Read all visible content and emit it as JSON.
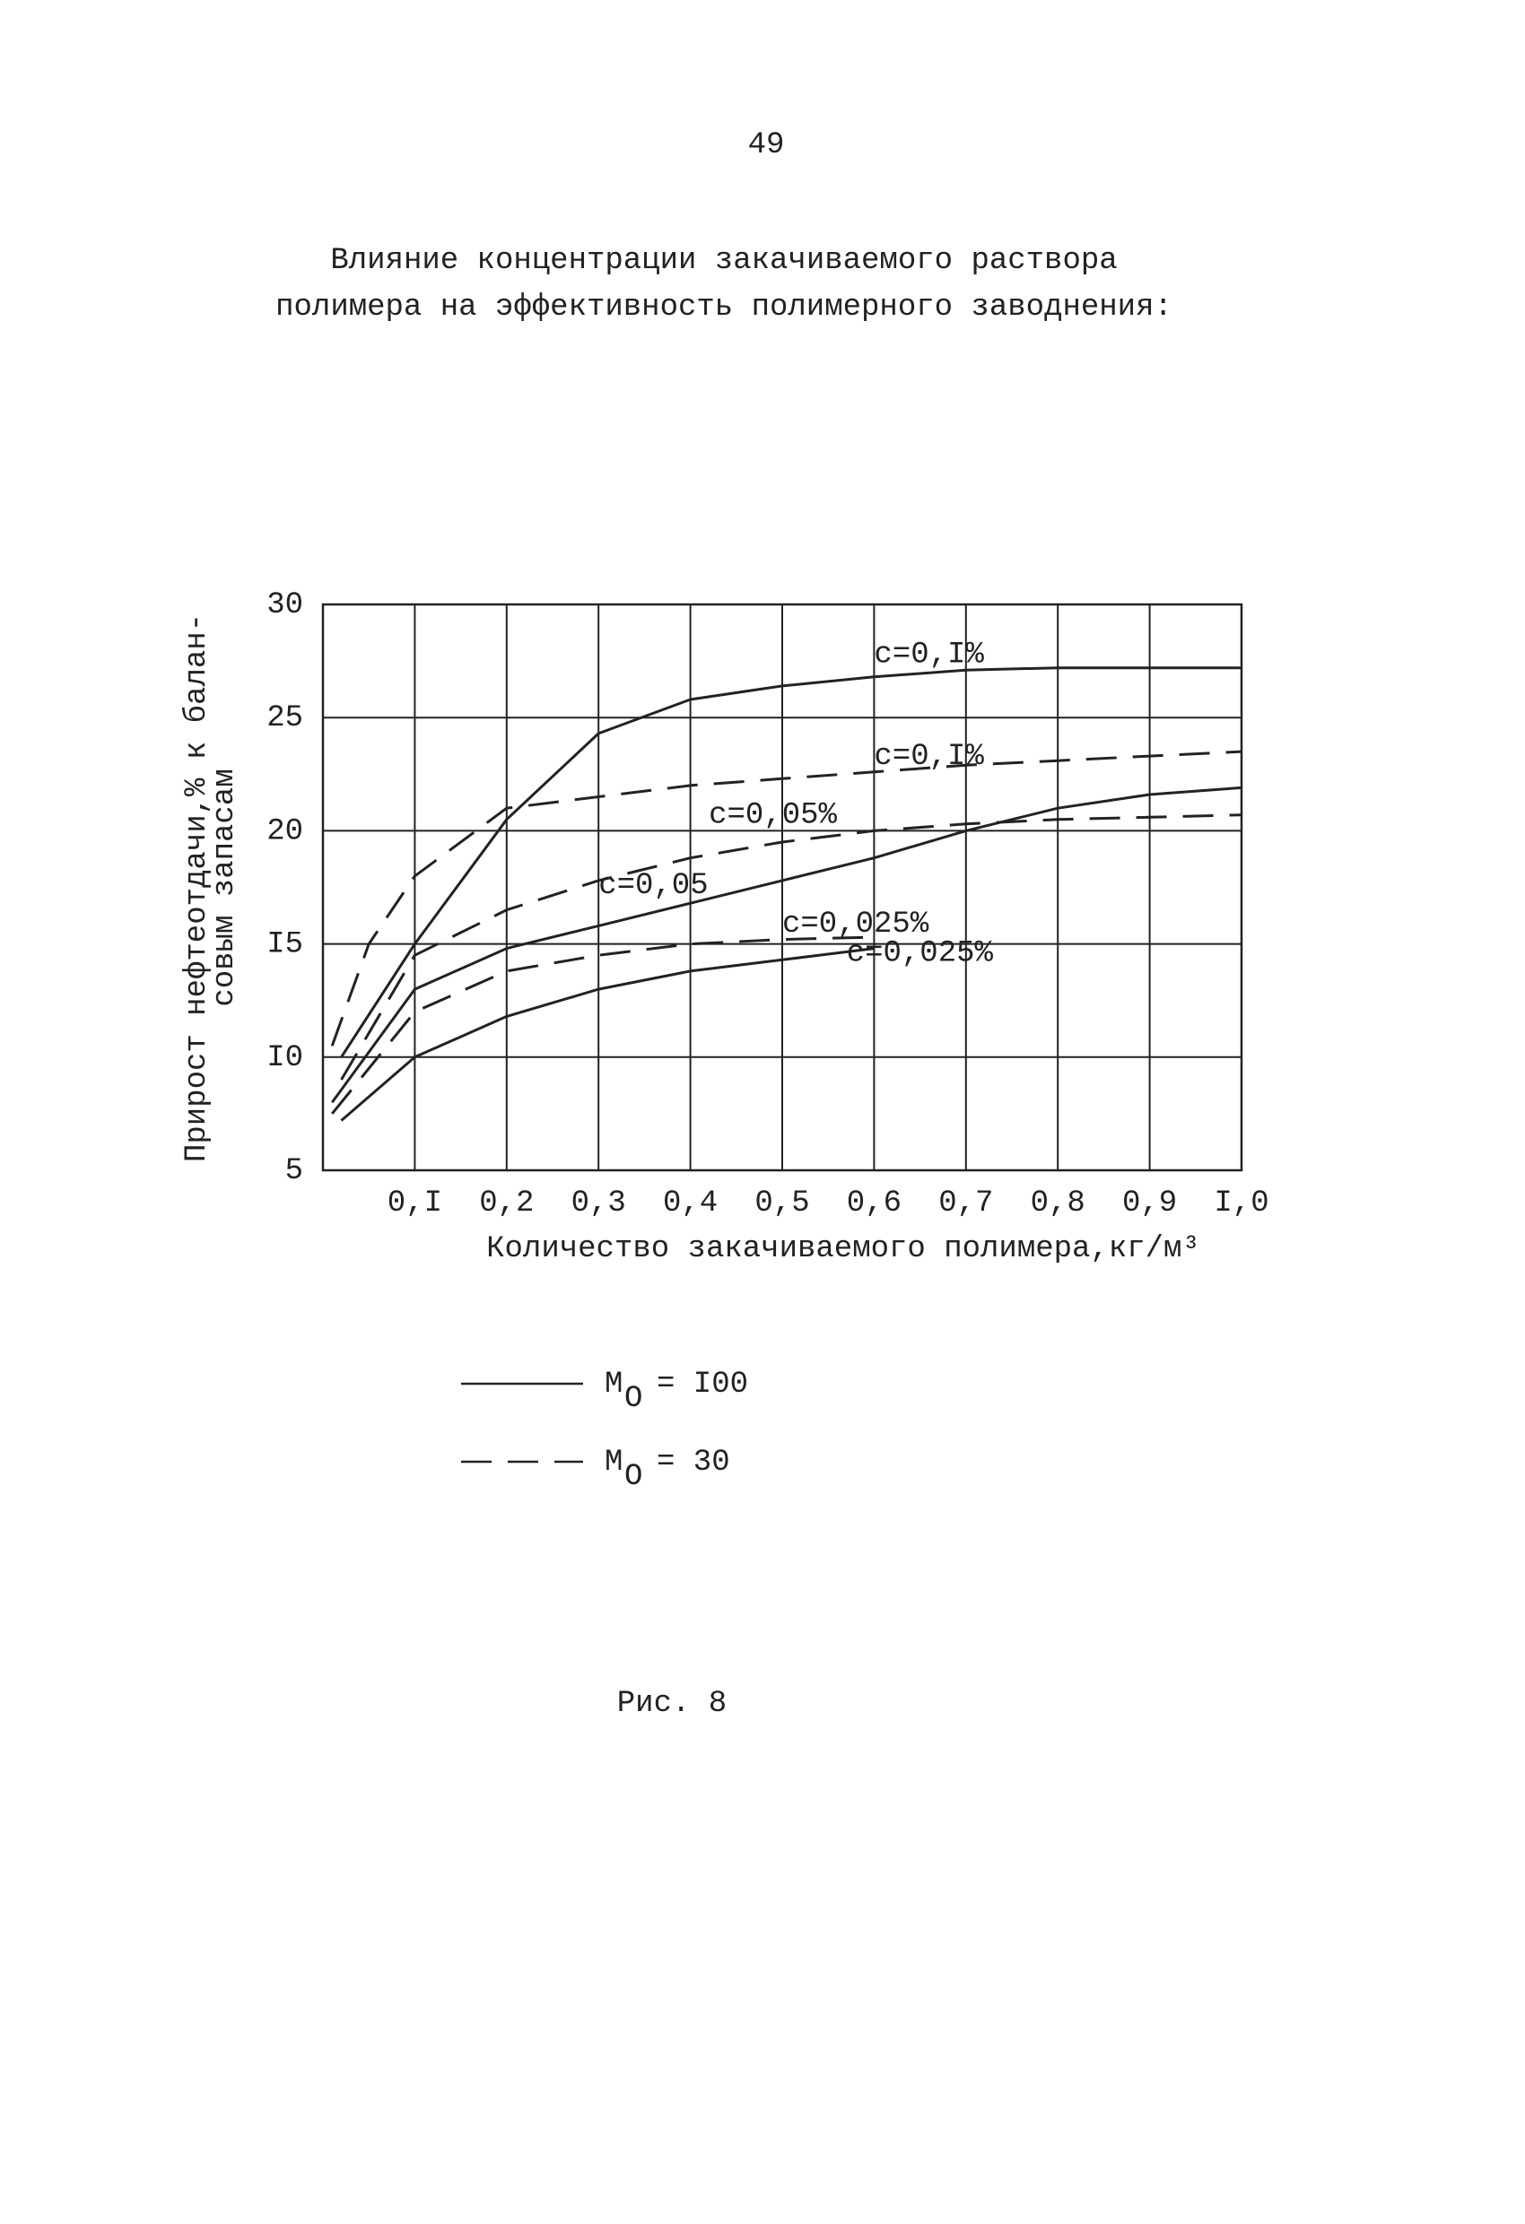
{
  "page_number": "49",
  "caption": "Рис. 8",
  "chart_data": {
    "type": "line",
    "title": [
      "Влияние концентрации закачиваемого раствора",
      "полимера на эффективность полимерного заводнения:"
    ],
    "y_label": [
      "Прирост нефтеотдачи,% к балан-",
      "совым запасам"
    ],
    "x_label": "Количество закачиваемого полимера,кг/м³",
    "xlim": [
      0,
      1.0
    ],
    "ylim": [
      5,
      30
    ],
    "xticks": [
      {
        "value": 0.1,
        "label": "0,I"
      },
      {
        "value": 0.2,
        "label": "0,2"
      },
      {
        "value": 0.3,
        "label": "0,3"
      },
      {
        "value": 0.4,
        "label": "0,4"
      },
      {
        "value": 0.5,
        "label": "0,5"
      },
      {
        "value": 0.6,
        "label": "0,6"
      },
      {
        "value": 0.7,
        "label": "0,7"
      },
      {
        "value": 0.8,
        "label": "0,8"
      },
      {
        "value": 0.9,
        "label": "0,9"
      },
      {
        "value": 1.0,
        "label": "I,0"
      }
    ],
    "yticks": [
      5,
      {
        "value": 10,
        "label": "I0"
      },
      {
        "value": 15,
        "label": "I5"
      },
      20,
      25,
      30
    ],
    "grid": true,
    "color": "#222222",
    "series": [
      {
        "name": "c=0,I%",
        "dash": "solid",
        "x": [
          0.02,
          0.1,
          0.2,
          0.3,
          0.4,
          0.5,
          0.6,
          0.7,
          0.8,
          0.9,
          1.0
        ],
        "values": [
          10,
          15,
          20.5,
          24.3,
          25.8,
          26.4,
          26.8,
          27.1,
          27.2,
          27.2,
          27.2
        ]
      },
      {
        "name": "c=0,I%",
        "dash": "dashed",
        "x": [
          0.01,
          0.05,
          0.1,
          0.2,
          0.3,
          0.4,
          0.5,
          0.6,
          0.7,
          0.8,
          0.9,
          1.0
        ],
        "values": [
          10.5,
          15,
          18,
          21,
          21.5,
          22,
          22.3,
          22.6,
          22.9,
          23.1,
          23.3,
          23.5
        ]
      },
      {
        "name": "c=0,05%",
        "dash": "dashed",
        "x": [
          0.02,
          0.1,
          0.2,
          0.3,
          0.4,
          0.5,
          0.6,
          0.7,
          0.8,
          0.9,
          1.0
        ],
        "values": [
          9,
          14.5,
          16.5,
          17.8,
          18.8,
          19.5,
          20,
          20.3,
          20.5,
          20.6,
          20.7
        ]
      },
      {
        "name": "c=0,05",
        "dash": "solid",
        "x": [
          0.01,
          0.1,
          0.2,
          0.3,
          0.4,
          0.5,
          0.6,
          0.7,
          0.8,
          0.9,
          1.0
        ],
        "values": [
          8,
          13,
          14.8,
          15.8,
          16.8,
          17.8,
          18.8,
          20,
          21,
          21.6,
          21.9
        ]
      },
      {
        "name": "c=0,025%",
        "dash": "dashed",
        "x": [
          0.01,
          0.1,
          0.2,
          0.3,
          0.4,
          0.5,
          0.6
        ],
        "values": [
          7.5,
          12,
          13.8,
          14.5,
          15,
          15.2,
          15.3
        ]
      },
      {
        "name": "c=0,025%",
        "dash": "solid",
        "x": [
          0.02,
          0.1,
          0.2,
          0.3,
          0.4,
          0.5,
          0.6
        ],
        "values": [
          7.2,
          10,
          11.8,
          13,
          13.8,
          14.3,
          14.8
        ]
      }
    ],
    "legend": [
      {
        "symbol": "M",
        "subscript": "O",
        "text": "= I00",
        "dash": "solid"
      },
      {
        "symbol": "M",
        "subscript": "O",
        "text": "= 30",
        "dash": "dashed"
      }
    ]
  }
}
